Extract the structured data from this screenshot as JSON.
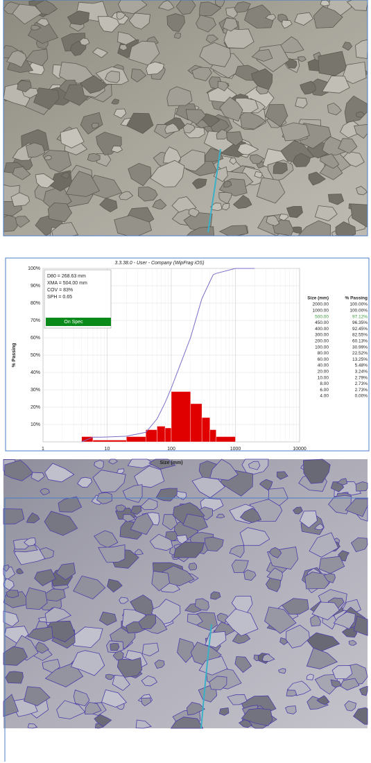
{
  "chart_data": {
    "type": "histogram",
    "title": "3.3.38.0 - User - Company (WipFrag iOS)",
    "x_label": "Size (mm)",
    "y_label": "% Passing",
    "log_x": true,
    "grid": true,
    "xlim": [
      1,
      10000
    ],
    "xticks": [
      1,
      10,
      100,
      1000,
      10000
    ],
    "ylim": [
      0,
      100
    ],
    "yticks": [
      {
        "value": 10,
        "label": "10%"
      },
      {
        "value": 20,
        "label": "20%"
      },
      {
        "value": 30,
        "label": "30%"
      },
      {
        "value": 40,
        "label": "40%"
      },
      {
        "value": 50,
        "label": "50%"
      },
      {
        "value": 60,
        "label": "60%"
      },
      {
        "value": 70,
        "label": "70%"
      },
      {
        "value": 80,
        "label": "80%"
      },
      {
        "value": 90,
        "label": "90%"
      },
      {
        "value": 100,
        "label": "100%"
      }
    ],
    "bins": [
      4,
      6,
      20,
      40,
      60,
      80,
      100,
      200,
      300,
      400,
      500,
      1000
    ],
    "counts": [
      3,
      1,
      3,
      7,
      9,
      8,
      29,
      22,
      14,
      7,
      3
    ],
    "bar_color": "#e00000",
    "stats": [
      "D80 = 268.63 mm",
      "XMA = 504.00 mm",
      "COV = 83%",
      "SPH = 0.65"
    ],
    "badge": "On Spec",
    "badge_color": "#0a8a1a",
    "series": [
      {
        "name": "% Passing",
        "color": "#7a6ec8",
        "x": [
          2000,
          1000,
          500,
          450,
          400,
          300,
          200,
          100,
          80,
          60,
          40,
          20,
          10,
          8,
          6,
          4
        ],
        "x_labels": [
          "2000.00",
          "1000.00",
          "500.00",
          "450.00",
          "400.00",
          "300.00",
          "200.00",
          "100.00",
          "80.00",
          "60.00",
          "40.00",
          "20.00",
          "10.00",
          "8.00",
          "6.00",
          "4.00"
        ],
        "values": [
          100,
          100,
          97.12,
          96.35,
          92.45,
          82.55,
          60.13,
          30.99,
          22.52,
          13.25,
          5.48,
          3.24,
          2.79,
          2.73,
          2.73,
          0
        ],
        "value_labels": [
          "100.00%",
          "100.00%",
          "97.12%",
          "96.35%",
          "92.45%",
          "82.55%",
          "60.13%",
          "30.99%",
          "22.52%",
          "13.25%",
          "5.48%",
          "3.24%",
          "2.79%",
          "2.73%",
          "2.73%",
          "0.00%"
        ]
      }
    ],
    "table_header": [
      "Size (mm)",
      "% Passing"
    ],
    "highlight_row": 2,
    "highlight_color": "#3a9a3a"
  }
}
